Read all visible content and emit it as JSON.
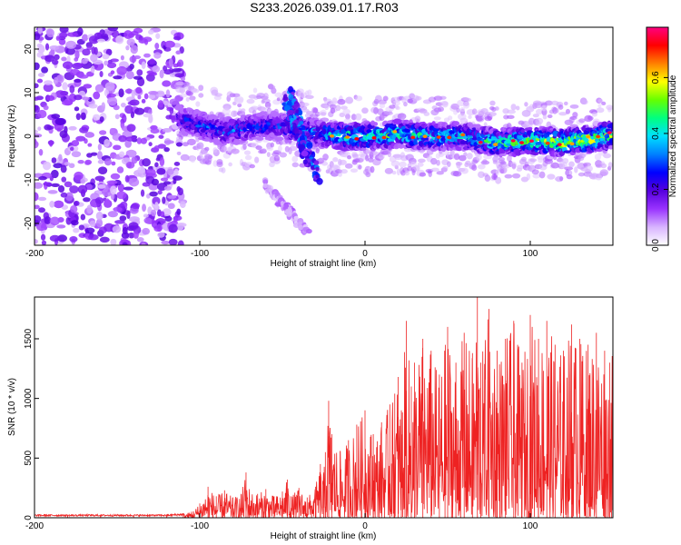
{
  "title": "S233.2026.039.01.17.R03",
  "chart_data": [
    {
      "type": "heatmap",
      "xlabel": "Height of straight line (km)",
      "ylabel": "Frequency (Hz)",
      "xlim": [
        -200,
        150
      ],
      "ylim": [
        -25,
        25
      ],
      "xticks": [
        -200,
        -100,
        0,
        100
      ],
      "yticks": [
        -20,
        -10,
        0,
        10,
        20
      ],
      "colorbar": {
        "label": "Normalized spectral amplitude",
        "range": [
          0,
          0.78
        ],
        "ticks": [
          0.0,
          0.2,
          0.4,
          0.6
        ],
        "colormap": [
          "#ffffff",
          "#d8b4ff",
          "#9933ff",
          "#5500dd",
          "#0000ff",
          "#0080ff",
          "#00e0ff",
          "#00ff80",
          "#66ff00",
          "#ffff00",
          "#ff8000",
          "#ff0000",
          "#ff0080"
        ]
      },
      "ridge": [
        {
          "x": -113,
          "y": 4,
          "amp": 0.25
        },
        {
          "x": -100,
          "y": 2.5,
          "amp": 0.28
        },
        {
          "x": -85,
          "y": 1,
          "amp": 0.3
        },
        {
          "x": -70,
          "y": 2,
          "amp": 0.3
        },
        {
          "x": -55,
          "y": 2.5,
          "amp": 0.28
        },
        {
          "x": -40,
          "y": 1.5,
          "amp": 0.3
        },
        {
          "x": -25,
          "y": 0.5,
          "amp": 0.35
        },
        {
          "x": -10,
          "y": 0,
          "amp": 0.5
        },
        {
          "x": 0,
          "y": 0,
          "amp": 0.45
        },
        {
          "x": 20,
          "y": 0.5,
          "amp": 0.45
        },
        {
          "x": 40,
          "y": 0,
          "amp": 0.4
        },
        {
          "x": 60,
          "y": 0,
          "amp": 0.4
        },
        {
          "x": 80,
          "y": -1.5,
          "amp": 0.45
        },
        {
          "x": 100,
          "y": -1,
          "amp": 0.5
        },
        {
          "x": 120,
          "y": -1.5,
          "amp": 0.55
        },
        {
          "x": 140,
          "y": -0.5,
          "amp": 0.55
        },
        {
          "x": 150,
          "y": 0.5,
          "amp": 0.5
        }
      ],
      "noise_region": {
        "x": [
          -200,
          -110
        ],
        "y": [
          -25,
          25
        ],
        "amp": [
          0.05,
          0.2
        ]
      },
      "features": [
        {
          "from": {
            "x": -45,
            "y": 10
          },
          "to": {
            "x": -28,
            "y": -10
          },
          "amp": 0.25
        },
        {
          "from": {
            "x": -48,
            "y": 8
          },
          "to": {
            "x": -35,
            "y": -6
          },
          "amp": 0.25
        },
        {
          "from": {
            "x": -60,
            "y": -11
          },
          "to": {
            "x": -35,
            "y": -22
          },
          "amp": 0.08
        }
      ]
    },
    {
      "type": "line",
      "xlabel": "Height of straight line (km)",
      "ylabel": "SNR (10 * v/v)",
      "xlim": [
        -200,
        150
      ],
      "ylim": [
        0,
        1850
      ],
      "xticks": [
        -200,
        -100,
        0,
        100
      ],
      "yticks": [
        0,
        500,
        1000,
        1500
      ],
      "color": "#ee2222",
      "series": [
        {
          "name": "SNR",
          "x": [
            -200,
            -180,
            -160,
            -140,
            -120,
            -110,
            -105,
            -100,
            -95,
            -90,
            -85,
            -80,
            -75,
            -72,
            -70,
            -65,
            -60,
            -55,
            -50,
            -47,
            -45,
            -40,
            -35,
            -30,
            -27,
            -25,
            -24,
            -22,
            -20,
            -15,
            -10,
            -5,
            0,
            5,
            10,
            15,
            18,
            20,
            22,
            25,
            28,
            30,
            35,
            40,
            45,
            50,
            55,
            60,
            65,
            68,
            70,
            75,
            80,
            85,
            90,
            95,
            100,
            105,
            110,
            115,
            120,
            125,
            130,
            135,
            140,
            145,
            148,
            150
          ],
          "y": [
            25,
            25,
            25,
            25,
            25,
            35,
            50,
            120,
            260,
            180,
            230,
            170,
            200,
            380,
            240,
            200,
            240,
            180,
            220,
            320,
            180,
            250,
            170,
            260,
            450,
            380,
            550,
            980,
            700,
            560,
            650,
            780,
            900,
            700,
            800,
            950,
            1040,
            1180,
            900,
            1650,
            1100,
            1300,
            1500,
            1400,
            1200,
            1600,
            1300,
            1550,
            1380,
            1850,
            1300,
            1750,
            1400,
            1500,
            1650,
            1300,
            1700,
            1500,
            1650,
            1450,
            1400,
            1620,
            1500,
            1450,
            1550,
            1400,
            1300,
            1400
          ]
        }
      ]
    }
  ]
}
